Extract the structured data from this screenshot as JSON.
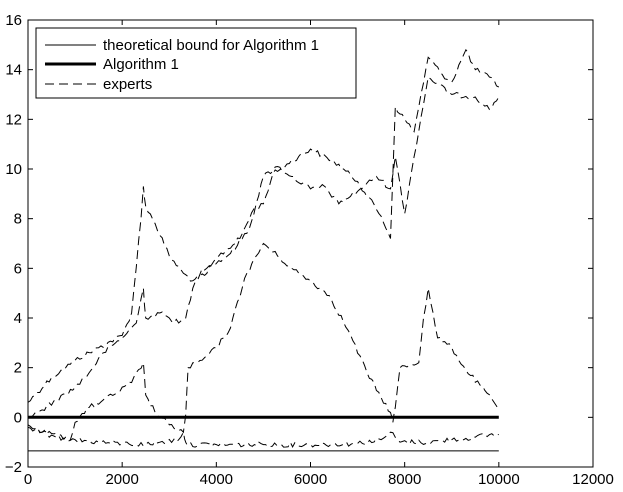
{
  "chart_data": {
    "type": "line",
    "title": "",
    "xlabel": "",
    "ylabel": "",
    "xlim": [
      0,
      12000
    ],
    "ylim": [
      -2,
      16
    ],
    "xticks": [
      0,
      2000,
      4000,
      6000,
      8000,
      10000,
      12000
    ],
    "yticks": [
      -2,
      0,
      2,
      4,
      6,
      8,
      10,
      12,
      14,
      16
    ],
    "xtick_labels": [
      "0",
      "2000",
      "4000",
      "6000",
      "8000",
      "10000",
      "12000"
    ],
    "ytick_labels": [
      "−2",
      "0",
      "2",
      "4",
      "6",
      "8",
      "10",
      "12",
      "14",
      "16"
    ],
    "grid": false,
    "legend_position": "top-left",
    "legend": [
      {
        "label": "theoretical bound for Algorithm 1",
        "style": "thin-solid"
      },
      {
        "label": "Algorithm 1",
        "style": "thick-solid"
      },
      {
        "label": "experts",
        "style": "dashed"
      }
    ],
    "series": [
      {
        "name": "theoretical bound for Algorithm 1",
        "style": "thin-solid",
        "x": [
          0,
          10000
        ],
        "y": [
          -1.35,
          -1.35
        ]
      },
      {
        "name": "Algorithm 1",
        "style": "thick-solid",
        "x": [
          0,
          10000
        ],
        "y": [
          0,
          0
        ]
      },
      {
        "name": "experts",
        "style": "dashed",
        "x": [
          0,
          200,
          500,
          800,
          1000,
          1500,
          2000,
          2200,
          2400,
          2450,
          2500,
          2700,
          3000,
          3300,
          3500,
          3800,
          4000,
          4500,
          4800,
          5000,
          5200,
          5500,
          6000,
          6500,
          7000,
          7500,
          7700,
          7800,
          8000,
          8200,
          8300,
          8500,
          8800,
          9000,
          9300,
          9500,
          9800,
          10000
        ],
        "y": [
          0.6,
          1.0,
          1.6,
          2.0,
          2.3,
          2.8,
          3.3,
          4.2,
          8.0,
          9.3,
          8.5,
          7.8,
          6.5,
          5.8,
          5.5,
          5.8,
          6.4,
          7.2,
          8.4,
          8.6,
          9.8,
          10.2,
          10.8,
          10.3,
          9.5,
          8.1,
          7.2,
          12.5,
          12.0,
          11.5,
          12.5,
          14.5,
          13.8,
          13.5,
          14.8,
          14.0,
          13.7,
          13.3
        ]
      },
      {
        "name": "experts",
        "style": "dashed",
        "x": [
          0,
          300,
          600,
          1000,
          1300,
          1600,
          2000,
          2300,
          2450,
          2500,
          2800,
          3000,
          3200,
          3350,
          3500,
          3700,
          4000,
          4300,
          4700,
          5000,
          5300,
          5600,
          6000,
          6300,
          6600,
          7000,
          7400,
          7700,
          7800,
          8000,
          8200,
          8500,
          9000,
          9500,
          9800,
          10000
        ],
        "y": [
          0.0,
          0.3,
          0.7,
          1.2,
          1.8,
          2.6,
          3.2,
          3.8,
          5.2,
          4.0,
          4.2,
          4.0,
          3.8,
          4.0,
          5.2,
          6.0,
          6.2,
          6.6,
          7.6,
          9.7,
          10.1,
          9.7,
          9.2,
          9.3,
          8.6,
          9.1,
          9.7,
          9.2,
          10.5,
          8.2,
          10.5,
          13.7,
          13.0,
          12.9,
          12.4,
          12.9
        ]
      },
      {
        "name": "experts",
        "style": "dashed",
        "x": [
          0,
          300,
          600,
          900,
          1000,
          1300,
          1600,
          1900,
          2200,
          2450,
          2500,
          2700,
          3000,
          3300,
          3350,
          3400,
          3600,
          3700,
          4000,
          4300,
          4600,
          5000,
          5300,
          5600,
          6000,
          6400,
          6800,
          7200,
          7500,
          7700,
          7750,
          7800,
          7900,
          8100,
          8300,
          8400,
          8500,
          8700,
          9000,
          9300,
          9600,
          9900,
          10000
        ],
        "y": [
          -0.4,
          -0.6,
          -0.8,
          -0.9,
          -0.2,
          0.4,
          0.7,
          1.0,
          1.4,
          2.2,
          0.9,
          0.2,
          -0.3,
          -0.6,
          0.1,
          2.0,
          2.2,
          2.3,
          2.8,
          3.6,
          5.6,
          7.0,
          6.5,
          6.0,
          5.5,
          4.9,
          3.5,
          1.8,
          0.8,
          0.2,
          -0.2,
          0.4,
          2.0,
          2.1,
          2.2,
          4.0,
          5.2,
          3.2,
          2.8,
          1.9,
          1.3,
          0.6,
          0.3
        ]
      },
      {
        "name": "experts",
        "style": "dashed",
        "x": [
          0,
          300,
          800,
          1000,
          1500,
          2000,
          2500,
          2800,
          3200,
          3300,
          3350,
          3400,
          4000,
          5000,
          6000,
          7000,
          7500,
          7700,
          7900,
          8500,
          9000,
          9500,
          9800,
          10000
        ],
        "y": [
          -0.3,
          -0.6,
          -0.8,
          -0.9,
          -1.0,
          -1.05,
          -1.1,
          -1.0,
          -0.9,
          -0.6,
          -1.0,
          -1.1,
          -1.1,
          -1.1,
          -1.1,
          -1.05,
          -0.9,
          -0.6,
          -1.0,
          -1.0,
          -0.9,
          -0.8,
          -0.7,
          -0.7
        ]
      }
    ]
  }
}
